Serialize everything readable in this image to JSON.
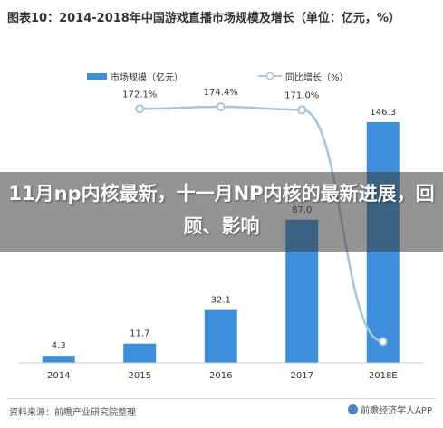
{
  "title": "图表10：2014-2018年中国游戏直播市场规模及增长（单位：亿元，%）",
  "overlay_text": "11月np内核最新，十一月NP内核的最新进展，回顾、影响",
  "source": "资料来源：前瞻产业研究院整理",
  "brand": "前瞻经济学人APP",
  "colors": {
    "bar": "#3d8fdb",
    "line": "#a9c4de",
    "point": "#ffffff",
    "axis": "#cccccc"
  },
  "chart_data": {
    "type": "bar",
    "categories": [
      "2014",
      "2015",
      "2016",
      "2017",
      "2018E"
    ],
    "series": [
      {
        "name": "市场规模（亿元）",
        "type": "bar",
        "values": [
          4.3,
          11.7,
          32.1,
          87.0,
          146.3
        ],
        "labels": [
          "4.3",
          "11.7",
          "32.1",
          "87.0",
          "146.3"
        ]
      },
      {
        "name": "同比增长（%）",
        "type": "line",
        "values": [
          null,
          172.1,
          174.4,
          171.0,
          68.2
        ],
        "labels": [
          "",
          "172.1%",
          "174.4%",
          "171.0%",
          ""
        ]
      }
    ],
    "legend_position": "top",
    "grid": false
  }
}
